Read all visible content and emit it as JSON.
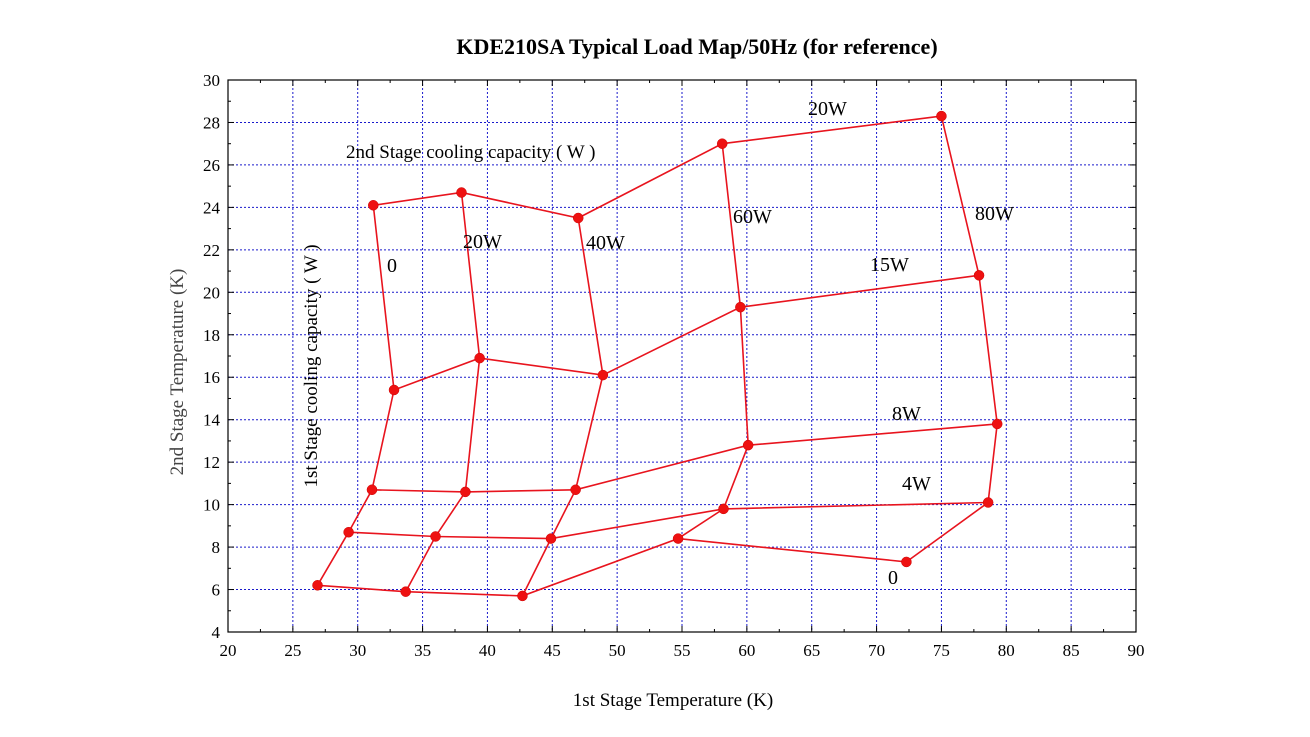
{
  "chart_data": {
    "type": "line",
    "title": "KDE210SA Typical Load Map/50Hz (for reference)",
    "xlabel": "1st Stage Temperature (K)",
    "ylabel": "2nd Stage Temperature (K)",
    "xlim": [
      20,
      90
    ],
    "ylim": [
      4,
      30
    ],
    "xticks": [
      20,
      25,
      30,
      35,
      40,
      45,
      50,
      55,
      60,
      65,
      70,
      75,
      80,
      85,
      90
    ],
    "yticks": [
      4,
      6,
      8,
      10,
      12,
      14,
      16,
      18,
      20,
      22,
      24,
      26,
      28,
      30
    ],
    "grid": true,
    "legend": "none",
    "annotations": {
      "second_stage_caption": "2nd Stage cooling capacity ( W )",
      "first_stage_caption": "1st Stage cooling capacity ( W )",
      "s2_20W": "20W",
      "s2_15W": "15W",
      "s2_8W": "8W",
      "s2_4W": "4W",
      "s2_0": "0",
      "s1_0": "0",
      "s1_20W": "20W",
      "s1_40W": "40W",
      "s1_60W": "60W",
      "s1_80W": "80W"
    },
    "series": [
      {
        "x": [
          26.9,
          29.3,
          31.1,
          32.8,
          31.2
        ],
        "y": [
          6.2,
          8.7,
          10.7,
          15.4,
          24.1
        ]
      },
      {
        "x": [
          33.7,
          36.0,
          38.3,
          39.4,
          38.0
        ],
        "y": [
          5.9,
          8.5,
          10.6,
          16.9,
          24.7
        ]
      },
      {
        "x": [
          42.7,
          44.9,
          46.8,
          48.9,
          47.0
        ],
        "y": [
          5.7,
          8.4,
          10.7,
          16.1,
          23.5
        ]
      },
      {
        "x": [
          54.7,
          58.2,
          60.1,
          59.5,
          58.1
        ],
        "y": [
          8.4,
          9.8,
          12.8,
          19.3,
          27.0
        ]
      },
      {
        "x": [
          72.3,
          78.6,
          79.3,
          77.9,
          75.0
        ],
        "y": [
          7.3,
          10.1,
          13.8,
          20.8,
          28.3
        ]
      },
      {
        "x": [
          26.9,
          33.7,
          42.7,
          54.7,
          72.3
        ],
        "y": [
          6.2,
          5.9,
          5.7,
          8.4,
          7.3
        ]
      },
      {
        "x": [
          29.3,
          36.0,
          44.9,
          58.2,
          78.6
        ],
        "y": [
          8.7,
          8.5,
          8.4,
          9.8,
          10.1
        ]
      },
      {
        "x": [
          31.1,
          38.3,
          46.8,
          60.1,
          79.3
        ],
        "y": [
          10.7,
          10.6,
          10.7,
          12.8,
          13.8
        ]
      },
      {
        "x": [
          32.8,
          39.4,
          48.9,
          59.5,
          77.9
        ],
        "y": [
          15.4,
          16.9,
          16.1,
          19.3,
          20.8
        ]
      },
      {
        "x": [
          31.2,
          38.0,
          47.0,
          58.1,
          75.0
        ],
        "y": [
          24.1,
          24.7,
          23.5,
          27.0,
          28.3
        ]
      }
    ]
  }
}
